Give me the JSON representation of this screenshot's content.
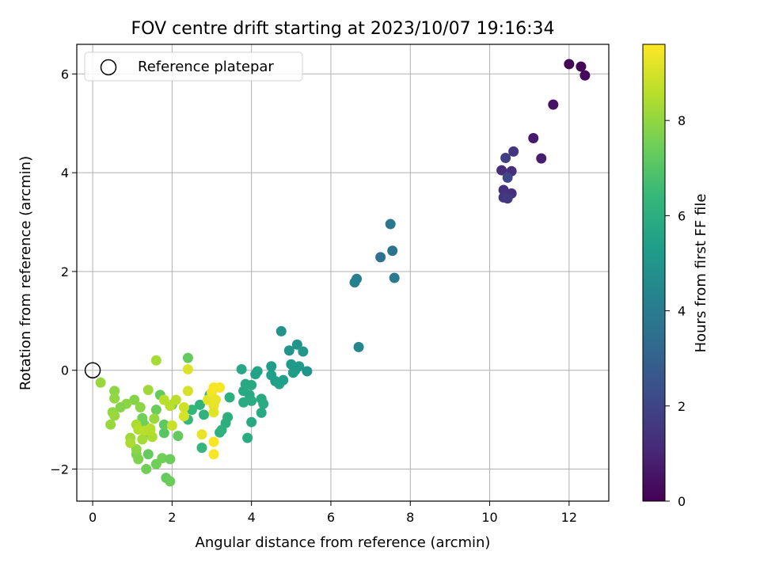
{
  "chart_data": {
    "type": "scatter",
    "title": "FOV centre drift starting at 2023/10/07 19:16:34",
    "xlabel": "Angular distance from reference (arcmin)",
    "ylabel": "Rotation from reference (arcmin)",
    "xlim": [
      -0.4,
      13.0
    ],
    "ylim": [
      -2.65,
      6.6
    ],
    "xticks": [
      0,
      2,
      4,
      6,
      8,
      10,
      12
    ],
    "yticks": [
      -2,
      0,
      2,
      4,
      6
    ],
    "grid": true,
    "legend": {
      "position": "upper left",
      "entries": [
        "Reference platepar"
      ]
    },
    "reference_point": {
      "x": 0,
      "y": 0,
      "label": "Reference platepar"
    },
    "colorbar": {
      "label": "Hours from first FF file",
      "colormap": "viridis",
      "range": [
        0,
        9.6
      ],
      "ticks": [
        0,
        2,
        4,
        6,
        8
      ]
    },
    "colormap_stops": [
      "#440154",
      "#482878",
      "#3e4989",
      "#31688e",
      "#26828e",
      "#1f9e89",
      "#35b779",
      "#6ece58",
      "#b5de2b",
      "#fde725"
    ],
    "points": [
      {
        "x": 12.0,
        "y": 6.2,
        "c": 0.1
      },
      {
        "x": 12.3,
        "y": 6.15,
        "c": 0.15
      },
      {
        "x": 12.4,
        "y": 5.97,
        "c": 0.2
      },
      {
        "x": 11.6,
        "y": 5.38,
        "c": 0.5
      },
      {
        "x": 11.1,
        "y": 4.7,
        "c": 0.7
      },
      {
        "x": 11.3,
        "y": 4.29,
        "c": 0.8
      },
      {
        "x": 10.6,
        "y": 4.43,
        "c": 1.5
      },
      {
        "x": 10.4,
        "y": 4.3,
        "c": 1.8
      },
      {
        "x": 10.3,
        "y": 4.05,
        "c": 1.2
      },
      {
        "x": 10.55,
        "y": 4.03,
        "c": 1.3
      },
      {
        "x": 10.45,
        "y": 3.9,
        "c": 2.1
      },
      {
        "x": 10.35,
        "y": 3.65,
        "c": 1.4
      },
      {
        "x": 10.55,
        "y": 3.58,
        "c": 1.4
      },
      {
        "x": 10.35,
        "y": 3.5,
        "c": 1.5
      },
      {
        "x": 10.45,
        "y": 3.48,
        "c": 1.6
      },
      {
        "x": 7.5,
        "y": 2.96,
        "c": 3.8
      },
      {
        "x": 7.25,
        "y": 2.29,
        "c": 3.6
      },
      {
        "x": 7.55,
        "y": 2.42,
        "c": 3.7
      },
      {
        "x": 7.6,
        "y": 1.87,
        "c": 3.9
      },
      {
        "x": 6.65,
        "y": 1.85,
        "c": 4.1
      },
      {
        "x": 6.6,
        "y": 1.78,
        "c": 4.2
      },
      {
        "x": 6.7,
        "y": 0.47,
        "c": 4.4
      },
      {
        "x": 4.75,
        "y": 0.79,
        "c": 4.9
      },
      {
        "x": 5.15,
        "y": 0.52,
        "c": 5.0
      },
      {
        "x": 5.3,
        "y": 0.38,
        "c": 5.1
      },
      {
        "x": 4.95,
        "y": 0.4,
        "c": 5.0
      },
      {
        "x": 5.0,
        "y": 0.12,
        "c": 5.2
      },
      {
        "x": 5.2,
        "y": 0.08,
        "c": 5.2
      },
      {
        "x": 5.1,
        "y": 0.0,
        "c": 5.1
      },
      {
        "x": 5.4,
        "y": -0.02,
        "c": 5.0
      },
      {
        "x": 5.05,
        "y": -0.05,
        "c": 5.3
      },
      {
        "x": 4.5,
        "y": 0.08,
        "c": 5.3
      },
      {
        "x": 4.5,
        "y": -0.1,
        "c": 5.4
      },
      {
        "x": 4.6,
        "y": -0.22,
        "c": 5.4
      },
      {
        "x": 4.7,
        "y": -0.28,
        "c": 5.5
      },
      {
        "x": 4.8,
        "y": -0.2,
        "c": 5.4
      },
      {
        "x": 4.15,
        "y": -0.02,
        "c": 5.6
      },
      {
        "x": 4.1,
        "y": -0.08,
        "c": 5.5
      },
      {
        "x": 3.75,
        "y": 0.02,
        "c": 5.7
      },
      {
        "x": 3.85,
        "y": -0.28,
        "c": 5.7
      },
      {
        "x": 4.0,
        "y": -0.3,
        "c": 5.8
      },
      {
        "x": 3.8,
        "y": -0.42,
        "c": 5.8
      },
      {
        "x": 3.95,
        "y": -0.5,
        "c": 5.8
      },
      {
        "x": 4.25,
        "y": -0.58,
        "c": 5.8
      },
      {
        "x": 4.3,
        "y": -0.68,
        "c": 5.9
      },
      {
        "x": 3.8,
        "y": -0.65,
        "c": 5.9
      },
      {
        "x": 4.0,
        "y": -0.62,
        "c": 5.9
      },
      {
        "x": 4.25,
        "y": -0.86,
        "c": 5.8
      },
      {
        "x": 4.0,
        "y": -1.05,
        "c": 5.8
      },
      {
        "x": 3.9,
        "y": -1.37,
        "c": 5.9
      },
      {
        "x": 3.45,
        "y": -0.55,
        "c": 6.0
      },
      {
        "x": 3.4,
        "y": -0.95,
        "c": 6.0
      },
      {
        "x": 3.35,
        "y": -1.07,
        "c": 6.0
      },
      {
        "x": 3.2,
        "y": -1.26,
        "c": 6.1
      },
      {
        "x": 3.25,
        "y": -1.21,
        "c": 6.1
      },
      {
        "x": 2.8,
        "y": -0.9,
        "c": 6.2
      },
      {
        "x": 2.7,
        "y": -0.7,
        "c": 6.2
      },
      {
        "x": 2.5,
        "y": -0.8,
        "c": 6.3
      },
      {
        "x": 2.75,
        "y": -1.57,
        "c": 6.3
      },
      {
        "x": 2.95,
        "y": -0.5,
        "c": 6.4
      },
      {
        "x": 2.4,
        "y": -1.0,
        "c": 6.4
      },
      {
        "x": 2.4,
        "y": 0.25,
        "c": 7.3
      },
      {
        "x": 2.15,
        "y": -1.33,
        "c": 7.3
      },
      {
        "x": 2.0,
        "y": -0.7,
        "c": 7.3
      },
      {
        "x": 1.8,
        "y": -1.27,
        "c": 7.1
      },
      {
        "x": 1.8,
        "y": -1.1,
        "c": 7.2
      },
      {
        "x": 1.6,
        "y": -0.8,
        "c": 7.4
      },
      {
        "x": 1.7,
        "y": -0.5,
        "c": 7.3
      },
      {
        "x": 1.4,
        "y": -1.3,
        "c": 7.3
      },
      {
        "x": 1.4,
        "y": -1.7,
        "c": 7.3
      },
      {
        "x": 1.3,
        "y": -1.1,
        "c": 7.5
      },
      {
        "x": 1.35,
        "y": -2.0,
        "c": 7.5
      },
      {
        "x": 1.6,
        "y": -1.9,
        "c": 7.5
      },
      {
        "x": 1.75,
        "y": -1.78,
        "c": 7.5
      },
      {
        "x": 1.95,
        "y": -1.8,
        "c": 7.4
      },
      {
        "x": 1.85,
        "y": -2.18,
        "c": 7.3
      },
      {
        "x": 1.95,
        "y": -2.25,
        "c": 7.4
      },
      {
        "x": 1.1,
        "y": -1.7,
        "c": 7.7
      },
      {
        "x": 1.15,
        "y": -1.8,
        "c": 7.7
      },
      {
        "x": 1.1,
        "y": -1.6,
        "c": 7.9
      },
      {
        "x": 1.25,
        "y": -0.97,
        "c": 7.5
      },
      {
        "x": 1.05,
        "y": -0.6,
        "c": 7.8
      },
      {
        "x": 1.2,
        "y": -0.75,
        "c": 7.9
      },
      {
        "x": 1.4,
        "y": -0.4,
        "c": 8.2
      },
      {
        "x": 1.55,
        "y": -0.98,
        "c": 8.1
      },
      {
        "x": 1.6,
        "y": 0.2,
        "c": 8.3
      },
      {
        "x": 0.85,
        "y": -0.68,
        "c": 7.9
      },
      {
        "x": 0.7,
        "y": -0.75,
        "c": 7.8
      },
      {
        "x": 0.55,
        "y": -0.42,
        "c": 7.9
      },
      {
        "x": 0.55,
        "y": -0.57,
        "c": 8.0
      },
      {
        "x": 0.5,
        "y": -0.85,
        "c": 8.0
      },
      {
        "x": 0.55,
        "y": -0.92,
        "c": 8.1
      },
      {
        "x": 0.45,
        "y": -1.1,
        "c": 8.1
      },
      {
        "x": 0.2,
        "y": -0.25,
        "c": 8.1
      },
      {
        "x": 0.95,
        "y": -1.37,
        "c": 8.2
      },
      {
        "x": 0.95,
        "y": -1.47,
        "c": 8.4
      },
      {
        "x": 1.1,
        "y": -1.1,
        "c": 8.4
      },
      {
        "x": 1.15,
        "y": -1.2,
        "c": 8.5
      },
      {
        "x": 1.3,
        "y": -1.23,
        "c": 8.6
      },
      {
        "x": 1.45,
        "y": -1.18,
        "c": 8.6
      },
      {
        "x": 1.25,
        "y": -1.4,
        "c": 8.3
      },
      {
        "x": 1.5,
        "y": -1.35,
        "c": 8.4
      },
      {
        "x": 1.45,
        "y": -1.22,
        "c": 8.5
      },
      {
        "x": 1.8,
        "y": -0.6,
        "c": 8.6
      },
      {
        "x": 1.95,
        "y": -0.72,
        "c": 8.6
      },
      {
        "x": 2.1,
        "y": -0.6,
        "c": 8.6
      },
      {
        "x": 2.0,
        "y": -1.12,
        "c": 8.8
      },
      {
        "x": 2.3,
        "y": -0.75,
        "c": 8.9
      },
      {
        "x": 2.3,
        "y": -0.93,
        "c": 9.0
      },
      {
        "x": 2.4,
        "y": -0.42,
        "c": 9.0
      },
      {
        "x": 2.4,
        "y": 0.02,
        "c": 9.1
      },
      {
        "x": 2.75,
        "y": -1.3,
        "c": 9.3
      },
      {
        "x": 2.9,
        "y": -0.6,
        "c": 9.2
      },
      {
        "x": 3.0,
        "y": -0.45,
        "c": 9.4
      },
      {
        "x": 3.05,
        "y": -0.35,
        "c": 9.5
      },
      {
        "x": 3.2,
        "y": -0.35,
        "c": 9.5
      },
      {
        "x": 3.1,
        "y": -0.6,
        "c": 9.3
      },
      {
        "x": 3.05,
        "y": -0.72,
        "c": 9.3
      },
      {
        "x": 3.05,
        "y": -0.85,
        "c": 9.2
      },
      {
        "x": 3.05,
        "y": -1.45,
        "c": 9.5
      },
      {
        "x": 3.05,
        "y": -1.7,
        "c": 9.5
      }
    ]
  }
}
